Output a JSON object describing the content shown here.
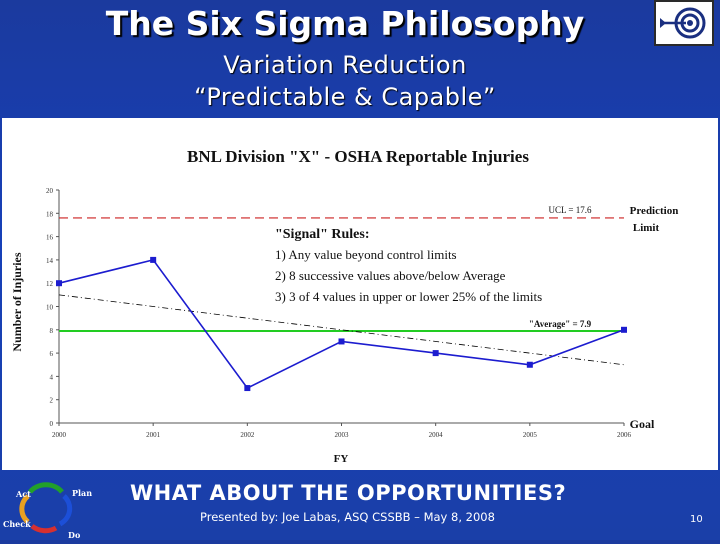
{
  "slide": {
    "title": "The Six Sigma Philosophy",
    "subtitle_1": "Variation Reduction",
    "subtitle_2": "“Predictable & Capable”",
    "bottom_text": "WHAT ABOUT THE OPPORTUNITIES?",
    "footer": "Presented by: Joe Labas, ASQ  CSSBB – May 8, 2008",
    "page_number": "10",
    "cycle": {
      "act": "Act",
      "plan": "Plan",
      "check": "Check",
      "do": "Do"
    }
  },
  "colors": {
    "background": "#1a3fa8",
    "data_line": "#1c1ccf",
    "ucl_line": "#cc2020",
    "average_line": "#22cc22",
    "trend_line": "#000000"
  },
  "chart_data": {
    "type": "line",
    "title": "BNL Division \"X\" - OSHA Reportable Injuries",
    "xlabel": "FY",
    "ylabel": "Number of Injuries",
    "x": [
      2000,
      2001,
      2002,
      2003,
      2004,
      2005,
      2006
    ],
    "xticks": [
      "2000",
      "2001",
      "2002",
      "2003",
      "2004",
      "2005",
      "2006"
    ],
    "yticks": [
      "0",
      "2",
      "4",
      "6",
      "8",
      "10",
      "12",
      "14",
      "16",
      "18",
      "20"
    ],
    "ylim": [
      0,
      20
    ],
    "series": [
      {
        "values": [
          12,
          14,
          3,
          7,
          6,
          5,
          8
        ]
      }
    ],
    "trend": {
      "x": [
        2000,
        2006
      ],
      "y": [
        11,
        5
      ]
    },
    "ucl": {
      "value": 17.6,
      "label": "UCL = 17.6"
    },
    "average": {
      "value": 7.9,
      "label": "\"Average\" = 7.9"
    },
    "prediction_label_1": "Prediction",
    "prediction_label_2": "Limit",
    "goal_label": "Goal",
    "rules": {
      "title": "\"Signal\" Rules:",
      "items": [
        "1) Any value beyond control limits",
        "2) 8 successive values above/below Average",
        "3) 3 of 4 values in upper or lower 25% of the limits"
      ]
    },
    "grid": false
  }
}
